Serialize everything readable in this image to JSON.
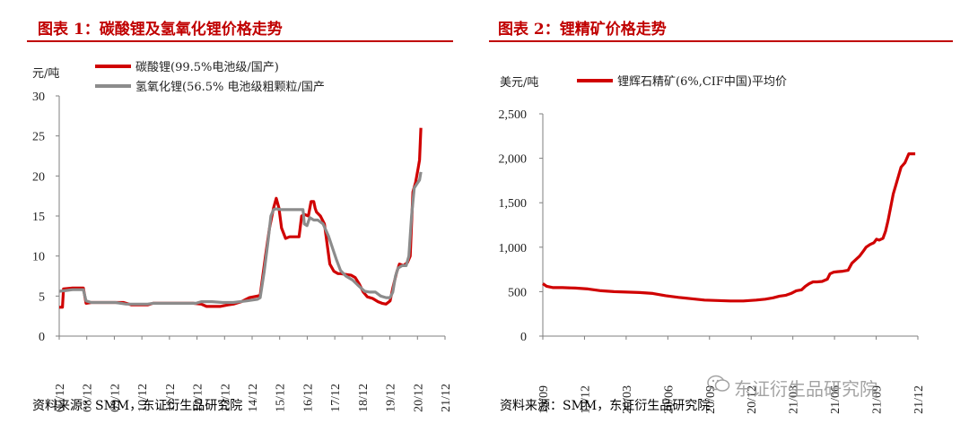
{
  "chart_data": [
    {
      "type": "line",
      "title": "图表 1：碳酸锂及氢氧化锂价格走势",
      "unit": "元/吨",
      "ylim": [
        0,
        30
      ],
      "yticks": [
        "0",
        "5",
        "10",
        "15",
        "20",
        "25",
        "30"
      ],
      "xticks": [
        "07/12",
        "08/12",
        "09/12",
        "10/12",
        "11/12",
        "12/12",
        "13/12",
        "14/12",
        "15/12",
        "16/12",
        "17/12",
        "18/12",
        "19/12",
        "20/12",
        "21/12"
      ],
      "xlim": [
        2007.5,
        2021.9
      ],
      "legend_position": "top-left",
      "series": [
        {
          "name": "碳酸锂(99.5%电池级/国产)",
          "color": "#d00000",
          "points": [
            [
              2007.5,
              3.6
            ],
            [
              2007.62,
              3.6
            ],
            [
              2007.66,
              5.9
            ],
            [
              2008.0,
              6.0
            ],
            [
              2008.4,
              6.0
            ],
            [
              2008.5,
              4.1
            ],
            [
              2008.7,
              4.2
            ],
            [
              2009.0,
              4.2
            ],
            [
              2009.5,
              4.2
            ],
            [
              2009.9,
              4.2
            ],
            [
              2010.2,
              3.9
            ],
            [
              2010.8,
              3.9
            ],
            [
              2011.0,
              4.1
            ],
            [
              2011.5,
              4.1
            ],
            [
              2012.0,
              4.1
            ],
            [
              2012.5,
              4.1
            ],
            [
              2012.8,
              4.0
            ],
            [
              2013.0,
              3.7
            ],
            [
              2013.5,
              3.7
            ],
            [
              2013.8,
              3.9
            ],
            [
              2014.0,
              4.0
            ],
            [
              2014.3,
              4.3
            ],
            [
              2014.6,
              4.8
            ],
            [
              2014.9,
              5.0
            ],
            [
              2015.0,
              5.1
            ],
            [
              2015.2,
              10.0
            ],
            [
              2015.35,
              13.5
            ],
            [
              2015.5,
              16.0
            ],
            [
              2015.6,
              17.2
            ],
            [
              2015.7,
              16.0
            ],
            [
              2015.8,
              13.5
            ],
            [
              2015.95,
              12.2
            ],
            [
              2016.1,
              12.4
            ],
            [
              2016.3,
              12.4
            ],
            [
              2016.45,
              12.4
            ],
            [
              2016.55,
              15.0
            ],
            [
              2016.65,
              15.2
            ],
            [
              2016.8,
              15.0
            ],
            [
              2016.9,
              16.8
            ],
            [
              2017.0,
              16.8
            ],
            [
              2017.05,
              16.0
            ],
            [
              2017.1,
              15.5
            ],
            [
              2017.25,
              15.0
            ],
            [
              2017.4,
              14.0
            ],
            [
              2017.5,
              11.5
            ],
            [
              2017.6,
              9.0
            ],
            [
              2017.75,
              8.1
            ],
            [
              2017.9,
              7.8
            ],
            [
              2018.0,
              7.8
            ],
            [
              2018.2,
              7.7
            ],
            [
              2018.4,
              7.6
            ],
            [
              2018.55,
              7.3
            ],
            [
              2018.7,
              6.5
            ],
            [
              2018.85,
              5.5
            ],
            [
              2019.0,
              4.9
            ],
            [
              2019.2,
              4.7
            ],
            [
              2019.4,
              4.3
            ],
            [
              2019.55,
              4.1
            ],
            [
              2019.7,
              4.0
            ],
            [
              2019.85,
              4.4
            ],
            [
              2019.95,
              6.0
            ],
            [
              2020.1,
              8.0
            ],
            [
              2020.2,
              9.0
            ],
            [
              2020.35,
              8.8
            ],
            [
              2020.5,
              9.2
            ],
            [
              2020.6,
              10.0
            ],
            [
              2020.7,
              18.0
            ],
            [
              2020.8,
              19.2
            ],
            [
              2020.9,
              21.0
            ],
            [
              2020.95,
              22.0
            ],
            [
              2021.0,
              26.0
            ]
          ]
        },
        {
          "name": "氢氧化锂(56.5% 电池级粗颗粒/国产",
          "color": "#8c8c8c",
          "points": [
            [
              2007.5,
              5.6
            ],
            [
              2007.75,
              5.7
            ],
            [
              2008.0,
              5.8
            ],
            [
              2008.4,
              5.8
            ],
            [
              2008.5,
              4.4
            ],
            [
              2008.7,
              4.2
            ],
            [
              2009.0,
              4.2
            ],
            [
              2009.6,
              4.2
            ],
            [
              2010.0,
              4.0
            ],
            [
              2010.8,
              4.0
            ],
            [
              2011.0,
              4.1
            ],
            [
              2012.0,
              4.1
            ],
            [
              2012.6,
              4.1
            ],
            [
              2012.8,
              4.3
            ],
            [
              2013.2,
              4.3
            ],
            [
              2013.6,
              4.2
            ],
            [
              2014.0,
              4.2
            ],
            [
              2014.5,
              4.4
            ],
            [
              2014.9,
              4.6
            ],
            [
              2015.0,
              4.8
            ],
            [
              2015.15,
              8.0
            ],
            [
              2015.3,
              12.0
            ],
            [
              2015.4,
              15.0
            ],
            [
              2015.5,
              15.8
            ],
            [
              2015.6,
              15.9
            ],
            [
              2015.8,
              15.8
            ],
            [
              2016.0,
              15.8
            ],
            [
              2016.3,
              15.8
            ],
            [
              2016.6,
              15.8
            ],
            [
              2016.65,
              14.0
            ],
            [
              2016.75,
              13.8
            ],
            [
              2016.85,
              14.8
            ],
            [
              2017.0,
              14.5
            ],
            [
              2017.15,
              14.5
            ],
            [
              2017.35,
              14.0
            ],
            [
              2017.55,
              12.5
            ],
            [
              2017.7,
              11.0
            ],
            [
              2017.85,
              9.5
            ],
            [
              2018.0,
              8.2
            ],
            [
              2018.2,
              7.5
            ],
            [
              2018.45,
              7.0
            ],
            [
              2018.7,
              6.2
            ],
            [
              2018.9,
              5.6
            ],
            [
              2019.1,
              5.5
            ],
            [
              2019.3,
              5.5
            ],
            [
              2019.5,
              5.0
            ],
            [
              2019.7,
              4.8
            ],
            [
              2019.85,
              4.8
            ],
            [
              2019.95,
              5.5
            ],
            [
              2020.05,
              7.5
            ],
            [
              2020.15,
              8.5
            ],
            [
              2020.3,
              8.8
            ],
            [
              2020.45,
              8.8
            ],
            [
              2020.55,
              10.0
            ],
            [
              2020.65,
              15.0
            ],
            [
              2020.75,
              18.5
            ],
            [
              2020.85,
              19.0
            ],
            [
              2020.95,
              19.5
            ],
            [
              2021.0,
              20.5
            ]
          ]
        }
      ],
      "source": "资料来源：SMM，东证衍生品研究院"
    },
    {
      "type": "line",
      "title": "图表 2：锂精矿价格走势",
      "unit": "美元/吨",
      "ylim": [
        0,
        2500
      ],
      "yticks": [
        "0",
        "500",
        "1,000",
        "1,500",
        "2,000",
        "2,500"
      ],
      "xticks": [
        "19/09",
        "19/12",
        "20/03",
        "20/06",
        "20/09",
        "20/12",
        "21/03",
        "21/06",
        "21/09",
        "21/12"
      ],
      "xlim": [
        0,
        29
      ],
      "legend_position": "top-left",
      "series": [
        {
          "name": "锂辉石精矿(6%,CIF中国)平均价",
          "color": "#d00000",
          "points": [
            [
              0,
              590
            ],
            [
              0.3,
              560
            ],
            [
              0.8,
              545
            ],
            [
              1.5,
              545
            ],
            [
              2.5,
              540
            ],
            [
              3.5,
              530
            ],
            [
              4.5,
              510
            ],
            [
              5.5,
              500
            ],
            [
              6.5,
              495
            ],
            [
              7.5,
              490
            ],
            [
              8.5,
              480
            ],
            [
              9.5,
              455
            ],
            [
              10.5,
              435
            ],
            [
              11.5,
              420
            ],
            [
              12.5,
              405
            ],
            [
              13.5,
              400
            ],
            [
              14.5,
              395
            ],
            [
              15.5,
              395
            ],
            [
              16.5,
              405
            ],
            [
              17.2,
              415
            ],
            [
              17.8,
              430
            ],
            [
              18.3,
              450
            ],
            [
              18.8,
              460
            ],
            [
              19.2,
              480
            ],
            [
              19.6,
              510
            ],
            [
              20.0,
              520
            ],
            [
              20.3,
              560
            ],
            [
              20.6,
              590
            ],
            [
              20.9,
              610
            ],
            [
              21.2,
              610
            ],
            [
              21.6,
              615
            ],
            [
              22.0,
              640
            ],
            [
              22.2,
              700
            ],
            [
              22.5,
              720
            ],
            [
              22.8,
              725
            ],
            [
              23.2,
              730
            ],
            [
              23.6,
              740
            ],
            [
              23.9,
              820
            ],
            [
              24.2,
              860
            ],
            [
              24.5,
              900
            ],
            [
              24.8,
              960
            ],
            [
              25.0,
              1000
            ],
            [
              25.3,
              1030
            ],
            [
              25.6,
              1050
            ],
            [
              25.8,
              1090
            ],
            [
              26.0,
              1080
            ],
            [
              26.3,
              1100
            ],
            [
              26.5,
              1180
            ],
            [
              26.7,
              1300
            ],
            [
              26.9,
              1450
            ],
            [
              27.1,
              1600
            ],
            [
              27.3,
              1700
            ],
            [
              27.5,
              1800
            ],
            [
              27.7,
              1900
            ],
            [
              28.0,
              1950
            ],
            [
              28.3,
              2050
            ],
            [
              28.8,
              2050
            ]
          ]
        }
      ],
      "source": "资料来源：SMM，东证衍生品研究院"
    }
  ],
  "watermark": "东证衍生品研究院"
}
